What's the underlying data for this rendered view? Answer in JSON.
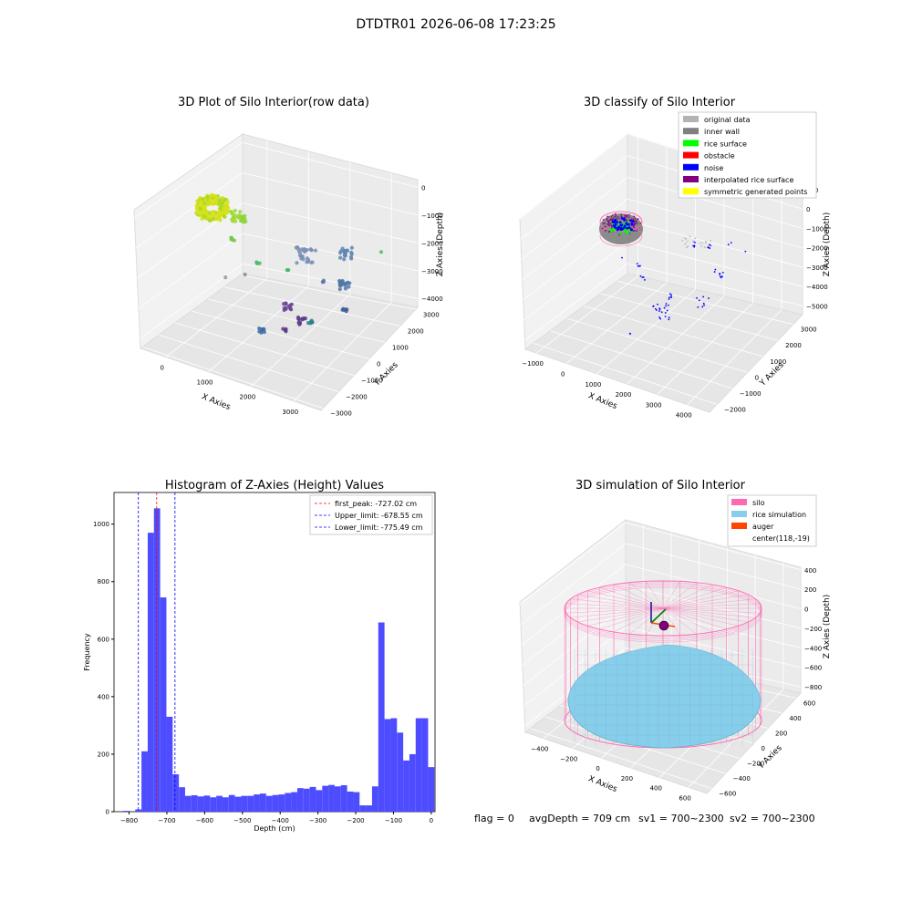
{
  "figure": {
    "suptitle": "DTDTR01 2026-06-08 17:23:25",
    "footer": {
      "flag": "flag = 0",
      "avg_depth": "avgDepth = 709 cm",
      "sv1": "sv1 = 700~2300",
      "sv2": "sv2 = 700~2300"
    }
  },
  "colors": {
    "hist_bar": "#4d4dff",
    "peak_line": "#ff0000",
    "limit_line": "#0000ff",
    "original": "#b3b3b3",
    "inner_wall": "#808080",
    "rice_surface": "#00ff00",
    "obstacle": "#ff0000",
    "noise": "#0000ff",
    "interpolated": "#800080",
    "symmetric": "#ffff00",
    "silo": "#ff69b4",
    "rice_sim": "#87ceeb",
    "auger": "#ff4500"
  },
  "chart_data": [
    {
      "id": "raw",
      "type": "scatter",
      "title": "3D Plot of Silo Interior(row data)",
      "xlabel": "X Axies",
      "ylabel": "Y Axies",
      "zlabel": "Z Axies (Depth)",
      "x_ticks": [
        "0",
        "1000",
        "2000",
        "3000"
      ],
      "y_ticks": [
        "−3000",
        "−2000",
        "−1000",
        "0",
        "1000",
        "2000",
        "3000"
      ],
      "z_ticks": [
        "0",
        "−1000",
        "−2000",
        "−3000",
        "−4000"
      ]
    },
    {
      "id": "classify",
      "type": "scatter",
      "title": "3D classify of Silo Interior",
      "xlabel": "X Axies",
      "ylabel": "Y Axies",
      "zlabel": "Z Axies (Depth)",
      "x_ticks": [
        "−1000",
        "0",
        "1000",
        "2000",
        "3000",
        "4000"
      ],
      "y_ticks": [
        "−2000",
        "−1000",
        "0",
        "1000",
        "2000",
        "3000"
      ],
      "z_ticks": [
        "000",
        "0",
        "−1000",
        "−2000",
        "−3000",
        "−4000",
        "−5000"
      ],
      "legend": [
        "original data",
        "inner wall",
        "rice surface",
        "obstacle",
        "noise",
        "interpolated rice surface",
        "symmetric generated points"
      ],
      "legend_position": "top-right"
    },
    {
      "id": "histogram",
      "type": "bar",
      "title": "Histogram of Z-Axies (Height) Values",
      "xlabel": "Depth (cm)",
      "ylabel": "Frequency",
      "xlim": [
        -840,
        10
      ],
      "ylim": [
        0,
        1110
      ],
      "x_ticks": [
        -800,
        -700,
        -600,
        -500,
        -400,
        -300,
        -200,
        -100,
        0
      ],
      "x_tick_labels": [
        "−800",
        "−700",
        "−600",
        "−500",
        "−400",
        "−300",
        "−200",
        "−100",
        "0"
      ],
      "y_ticks": [
        0,
        200,
        400,
        600,
        800,
        1000
      ],
      "bin_width": 16.5,
      "bins": [
        [
          -808,
          3
        ],
        [
          -792,
          0
        ],
        [
          -775.5,
          8
        ],
        [
          -759,
          210
        ],
        [
          -742.5,
          970
        ],
        [
          -726,
          1055
        ],
        [
          -709.5,
          745
        ],
        [
          -693,
          330
        ],
        [
          -676.5,
          130
        ],
        [
          -660,
          85
        ],
        [
          -643.5,
          55
        ],
        [
          -627,
          57
        ],
        [
          -610.5,
          53
        ],
        [
          -594,
          56
        ],
        [
          -577.5,
          50
        ],
        [
          -561,
          55
        ],
        [
          -544.5,
          50
        ],
        [
          -528,
          58
        ],
        [
          -511.5,
          52
        ],
        [
          -495,
          55
        ],
        [
          -478.5,
          55
        ],
        [
          -462,
          60
        ],
        [
          -445.5,
          63
        ],
        [
          -429,
          55
        ],
        [
          -412.5,
          58
        ],
        [
          -396,
          60
        ],
        [
          -379.5,
          65
        ],
        [
          -363,
          68
        ],
        [
          -346.5,
          82
        ],
        [
          -330,
          80
        ],
        [
          -313.5,
          86
        ],
        [
          -297,
          75
        ],
        [
          -280.5,
          90
        ],
        [
          -264,
          93
        ],
        [
          -247.5,
          88
        ],
        [
          -231,
          92
        ],
        [
          -214.5,
          70
        ],
        [
          -198,
          68
        ],
        [
          -181.5,
          22
        ],
        [
          -165,
          22
        ],
        [
          -148.5,
          88
        ],
        [
          -132,
          658
        ],
        [
          -115.5,
          322
        ],
        [
          -99,
          325
        ],
        [
          -82.5,
          275
        ],
        [
          -66,
          178
        ],
        [
          -49.5,
          200
        ],
        [
          -33,
          325
        ],
        [
          -16.5,
          325
        ],
        [
          0,
          155
        ]
      ],
      "vlines": [
        {
          "name": "first_peak: -727.02 cm",
          "x": -727.02,
          "style": "red"
        },
        {
          "name": "Upper_limit: -678.55 cm",
          "x": -678.55,
          "style": "blue"
        },
        {
          "name": "Lower_limit: -775.49 cm",
          "x": -775.49,
          "style": "blue"
        }
      ],
      "legend_position": "top-right"
    },
    {
      "id": "simulation",
      "type": "scatter",
      "title": "3D simulation of Silo Interior",
      "xlabel": "X Axies",
      "ylabel": "Y Axies",
      "zlabel": "Z Axies (Depth)",
      "x_ticks": [
        "−400",
        "−200",
        "0",
        "200",
        "400",
        "600"
      ],
      "y_ticks": [
        "−600",
        "−400",
        "−200",
        "0",
        "200",
        "400",
        "600"
      ],
      "z_ticks": [
        "400",
        "200",
        "0",
        "−200",
        "−400",
        "−600",
        "−800"
      ],
      "legend": [
        "silo",
        "rice simulation",
        "auger",
        "center(118,-19)"
      ],
      "legend_position": "top-right"
    }
  ]
}
